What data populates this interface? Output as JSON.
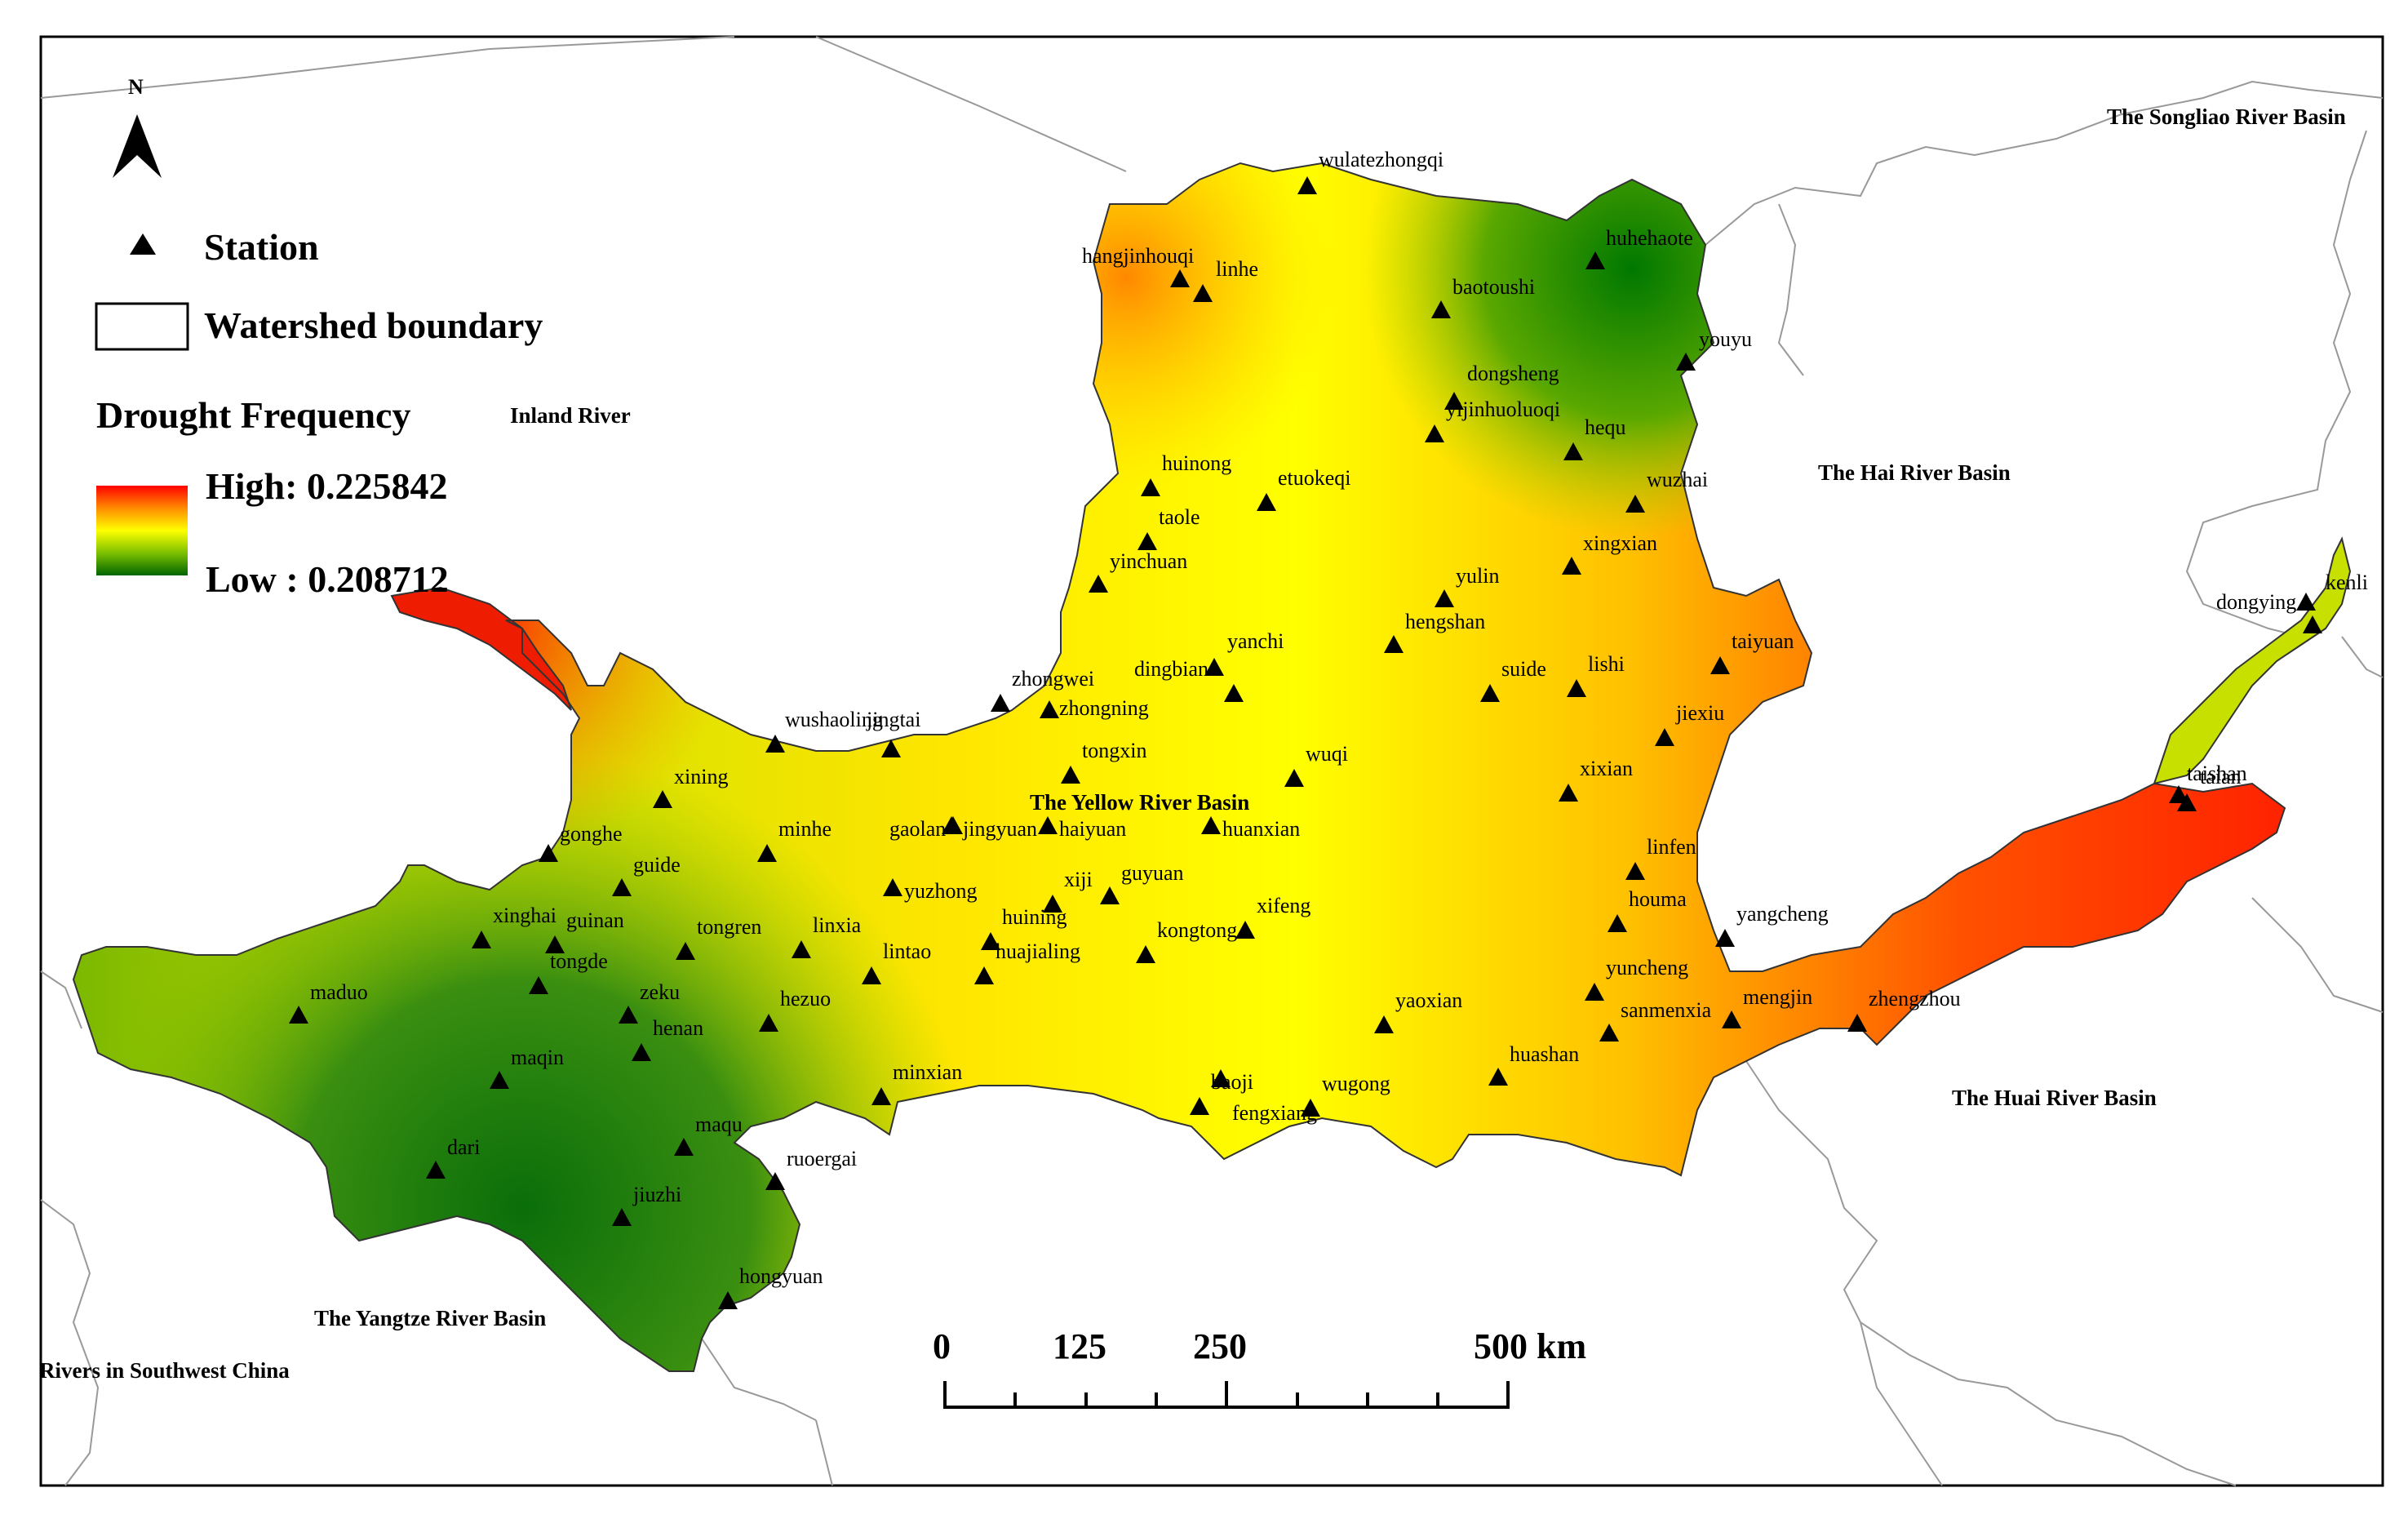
{
  "legend": {
    "north": "N",
    "station": "Station",
    "watershed": "Watershed boundary",
    "title": "Drought Frequency",
    "high": "High: 0.225842",
    "low": "Low : 0.208712"
  },
  "colors": {
    "high": "#ff0000",
    "mid": "#ffff00",
    "low": "#006400",
    "border": "#999999"
  },
  "basins": {
    "inland": "Inland River",
    "songliao": "The Songliao River Basin",
    "hai": "The Hai River Basin",
    "huai": "The Huai River Basin",
    "yangtze": "The Yangtze River Basin",
    "southwest": "Rivers in Southwest China",
    "yellow": "The Yellow River Basin"
  },
  "scale": {
    "t0": "0",
    "t1": "125",
    "t2": "250",
    "t3": "500 km"
  },
  "stations": [
    "wulatezhongqi",
    "hangjinhouqi",
    "linhe",
    "huhehaote",
    "baotoushi",
    "youyu",
    "dongsheng",
    "yijinhuoluoqi",
    "hequ",
    "huinong",
    "etuokeqi",
    "taole",
    "wuzhai",
    "xingxian",
    "yinchuan",
    "yulin",
    "hengshan",
    "dongying",
    "kenli",
    "taiyuan",
    "zhongwei",
    "dingbian",
    "yanchi",
    "suide",
    "lishi",
    "wushaoling",
    "jingtai",
    "zhongning",
    "jiexiu",
    "tongxin",
    "wuqi",
    "xixian",
    "taishan",
    "taian",
    "xining",
    "gaolan",
    "jingyuan",
    "haiyuan",
    "huanxian",
    "minhe",
    "gonghe",
    "guide",
    "linfen",
    "yuzhong",
    "xiji",
    "guyuan",
    "xifeng",
    "houma",
    "yangcheng",
    "xinghai",
    "guinan",
    "tongren",
    "linxia",
    "huining",
    "kongtong",
    "tongde",
    "lintao",
    "huajialing",
    "yuncheng",
    "maduo",
    "zeku",
    "henan",
    "hezuo",
    "sanmenxia",
    "mengjin",
    "zhengzhou",
    "yaoxian",
    "maqin",
    "huashan",
    "minxian",
    "baoji",
    "wugong",
    "fengxiang",
    "maqu",
    "dari",
    "ruoergai",
    "jiuzhi",
    "hongyuan"
  ]
}
